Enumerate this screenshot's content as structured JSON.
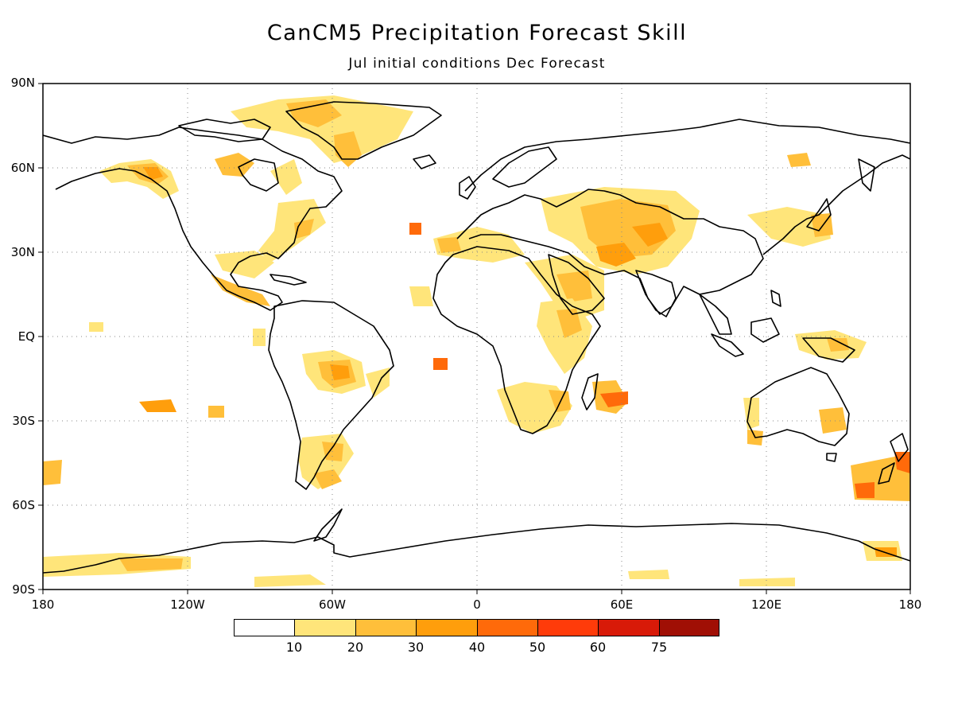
{
  "title": "CanCM5 Precipitation Forecast Skill",
  "subtitle": "Jul initial conditions   Dec Forecast",
  "y_axis_labels": [
    "90N",
    "60N",
    "30N",
    "EQ",
    "30S",
    "60S",
    "90S"
  ],
  "x_axis_labels": [
    "180",
    "120W",
    "60W",
    "0",
    "60E",
    "120E",
    "180"
  ],
  "colorbar": {
    "levels": [
      "10",
      "20",
      "30",
      "40",
      "50",
      "60",
      "75"
    ],
    "colors": [
      "#ffffff",
      "#ffe57a",
      "#ffbf3a",
      "#ff9e0c",
      "#ff6a0a",
      "#ff3b0a",
      "#d81a08",
      "#a00f05"
    ]
  },
  "map": {
    "lon_range": [
      -180,
      180
    ],
    "lat_range": [
      -90,
      90
    ],
    "grid": "dotted 30° graticule",
    "skill_regions": [
      {
        "name": "Alaska",
        "lon": -137,
        "lat": 58,
        "level": 3
      },
      {
        "name": "Canadian Arctic Archipelago",
        "lon": -70,
        "lat": 80,
        "level": 2
      },
      {
        "name": "Hudson Bay",
        "lon": -85,
        "lat": 62,
        "level": 2
      },
      {
        "name": "Greenland",
        "lon": -45,
        "lat": 70,
        "level": 2
      },
      {
        "name": "Eastern US",
        "lon": -75,
        "lat": 38,
        "level": 1
      },
      {
        "name": "Gulf of Mexico",
        "lon": -95,
        "lat": 28,
        "level": 2
      },
      {
        "name": "Central America",
        "lon": -100,
        "lat": 18,
        "level": 2
      },
      {
        "name": "North Atlantic",
        "lon": -25,
        "lat": 38,
        "level": 4
      },
      {
        "name": "Amazon",
        "lon": -48,
        "lat": -12,
        "level": 4
      },
      {
        "name": "Southern South America",
        "lon": -65,
        "lat": -48,
        "level": 3
      },
      {
        "name": "South Atlantic",
        "lon": -15,
        "lat": -10,
        "level": 4
      },
      {
        "name": "Mediterranean",
        "lon": 20,
        "lat": 35,
        "level": 2
      },
      {
        "name": "Middle East",
        "lon": 50,
        "lat": 28,
        "level": 3
      },
      {
        "name": "Iran-Afghanistan",
        "lon": 65,
        "lat": 33,
        "level": 3
      },
      {
        "name": "Central Asia",
        "lon": 65,
        "lat": 50,
        "level": 2
      },
      {
        "name": "East Africa",
        "lon": 38,
        "lat": 5,
        "level": 2
      },
      {
        "name": "Southern Africa",
        "lon": 30,
        "lat": -18,
        "level": 2
      },
      {
        "name": "Madagascar",
        "lon": 55,
        "lat": -25,
        "level": 4
      },
      {
        "name": "Indonesia",
        "lon": 140,
        "lat": -3,
        "level": 2
      },
      {
        "name": "Japan",
        "lon": 140,
        "lat": 38,
        "level": 2
      },
      {
        "name": "Australia",
        "lon": 145,
        "lat": -28,
        "level": 2
      },
      {
        "name": "New Zealand",
        "lon": 170,
        "lat": -50,
        "level": 4
      },
      {
        "name": "Antarctica",
        "lon": -150,
        "lat": -78,
        "level": 2
      },
      {
        "name": "Central Pacific",
        "lon": -135,
        "lat": -25,
        "level": 4
      }
    ]
  }
}
